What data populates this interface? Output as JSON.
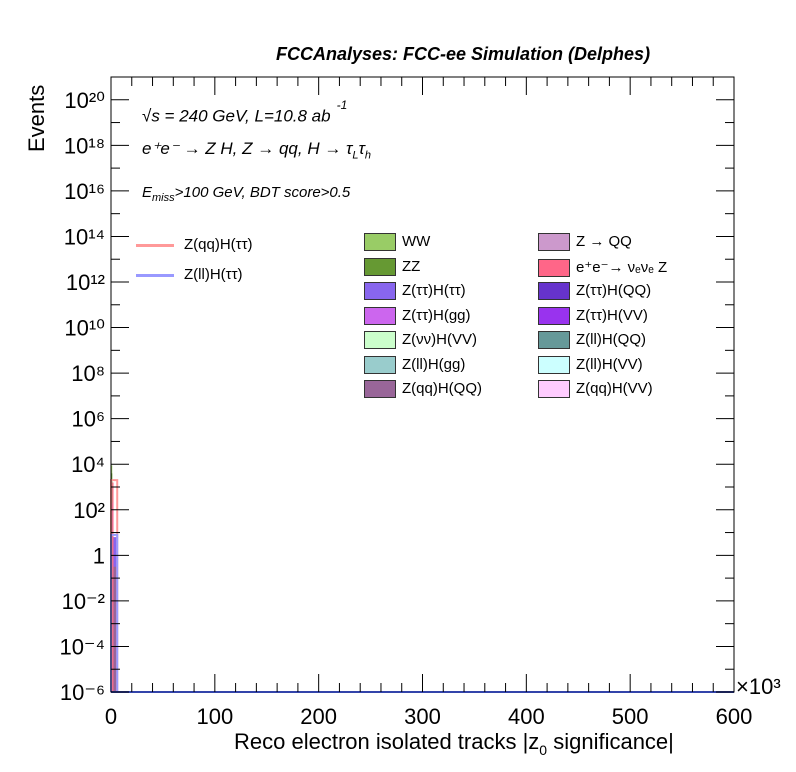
{
  "title": "FCCAnalyses: FCC-ee Simulation (Delphes)",
  "annotations": {
    "energy": "√s = 240 GeV, L=10.8 ab",
    "energy_sup": "-1",
    "process": "e⁺e⁻ → Z H, Z → qq, H → τ",
    "process_sub1": "L",
    "process_tau2": "τ",
    "process_sub2": "h",
    "cuts_pre": "E",
    "cuts_sub": "miss",
    "cuts_post": ">100 GeV, BDT score>0.5"
  },
  "chart_data": {
    "type": "bar",
    "title": "FCCAnalyses: FCC-ee Simulation (Delphes)",
    "xlabel": "Reco electron isolated tracks |z0 significance|",
    "ylabel": "Events",
    "x_multiplier_label": "×10³",
    "xlim": [
      0,
      600
    ],
    "ylim_log10": [
      -6,
      21
    ],
    "log_y": true,
    "xticks": [
      "0",
      "100",
      "200",
      "300",
      "400",
      "500",
      "600"
    ],
    "yticks": [
      {
        "exp": -6,
        "label": "10⁻⁶"
      },
      {
        "exp": -4,
        "label": "10⁻⁴"
      },
      {
        "exp": -2,
        "label": "10⁻²"
      },
      {
        "exp": 0,
        "label": "1"
      },
      {
        "exp": 2,
        "label": "10²"
      },
      {
        "exp": 4,
        "label": "10⁴"
      },
      {
        "exp": 6,
        "label": "10⁶"
      },
      {
        "exp": 8,
        "label": "10⁸"
      },
      {
        "exp": 10,
        "label": "10¹⁰"
      },
      {
        "exp": 12,
        "label": "10¹²"
      },
      {
        "exp": 14,
        "label": "10¹⁴"
      },
      {
        "exp": 16,
        "label": "10¹⁶"
      },
      {
        "exp": 18,
        "label": "10¹⁸"
      },
      {
        "exp": 20,
        "label": "10²⁰"
      }
    ],
    "stacked_bars": [
      {
        "name": "WW",
        "color": "#99cc66",
        "bin_x": [
          0,
          1.2
        ],
        "top_log10": 3.95
      },
      {
        "name": "ZZ",
        "color": "#669933",
        "bin_x": [
          0,
          1.2
        ],
        "top_log10": 3.6
      },
      {
        "name": "Z(ττ)H(gg)",
        "color": "#cc66ee",
        "bin_x": [
          0,
          1.2
        ],
        "top_log10": 2.3
      },
      {
        "name": "e⁺e⁻→ νₑνₑ Z",
        "color": "#ff6688",
        "bin_x": [
          1.2,
          2.4
        ],
        "top_log10": 3.2
      },
      {
        "name": "Z(ττ)H(ττ)",
        "color": "#8866ee",
        "bin_x": [
          2.4,
          6
        ],
        "top_log10": 0.8
      },
      {
        "name": "Z(qq)H(QQ)",
        "color": "#996699",
        "bin_x": [
          2.4,
          6
        ],
        "top_log10": -0.5
      }
    ],
    "signal_lines": [
      {
        "name": "Z(qq)H(ττ)",
        "color": "#ff9999",
        "bin_x": [
          0,
          6
        ],
        "top_log10": 3.3
      },
      {
        "name": "Z(ll)H(ττ)",
        "color": "#9999ff",
        "bin_x": [
          0,
          6
        ],
        "top_log10": 0.9
      }
    ]
  },
  "legend_signals": [
    {
      "label": "Z(qq)H(ττ)",
      "color": "#ff9999"
    },
    {
      "label": "Z(ll)H(ττ)",
      "color": "#9999ff"
    }
  ],
  "legend_backgrounds": [
    {
      "label": "WW",
      "color": "#99cc66"
    },
    {
      "label": "Z → QQ",
      "color": "#cc99cc"
    },
    {
      "label": "ZZ",
      "color": "#669933"
    },
    {
      "label": "e⁺e⁻→ νₑνₑ Z",
      "color": "#ff6688"
    },
    {
      "label": "Z(ττ)H(ττ)",
      "color": "#8866ee"
    },
    {
      "label": "Z(ττ)H(QQ)",
      "color": "#6633cc"
    },
    {
      "label": "Z(ττ)H(gg)",
      "color": "#cc66ee"
    },
    {
      "label": "Z(ττ)H(VV)",
      "color": "#9933ee"
    },
    {
      "label": "Z(νν)H(VV)",
      "color": "#ccffcc"
    },
    {
      "label": "Z(ll)H(QQ)",
      "color": "#669999"
    },
    {
      "label": "Z(ll)H(gg)",
      "color": "#99cccc"
    },
    {
      "label": "Z(ll)H(VV)",
      "color": "#ccffff"
    },
    {
      "label": "Z(qq)H(QQ)",
      "color": "#996699"
    },
    {
      "label": "Z(qq)H(VV)",
      "color": "#ffccff"
    }
  ]
}
